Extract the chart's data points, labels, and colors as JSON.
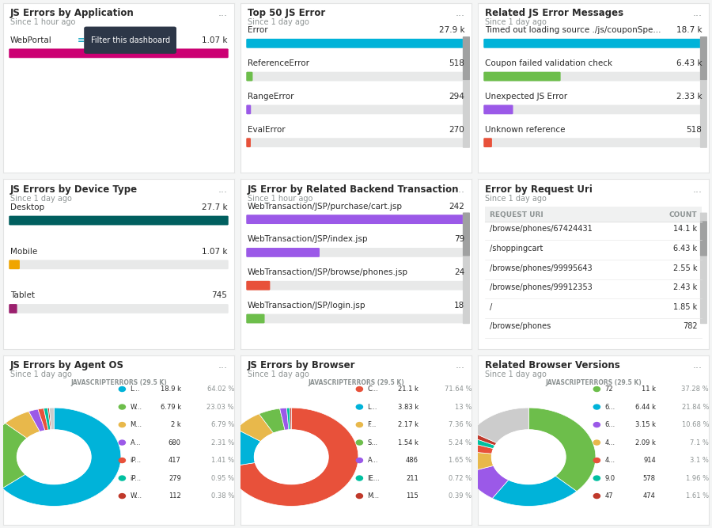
{
  "bg_color": "#f4f5f5",
  "card_color": "#ffffff",
  "border_color": "#e3e4e4",
  "title_color": "#2a2a2a",
  "subtitle_color": "#8e9494",
  "text_color": "#2a2a2a",
  "value_color": "#2a2a2a",
  "bar_bg_color": "#e8e9e9",
  "panel1": {
    "title": "JS Errors by Application",
    "subtitle": "Since 1 hour ago",
    "items": [
      {
        "label": "WebPortal",
        "value": "1.07 k",
        "bar_pct": 1.0,
        "bar_color": "#cc0073"
      }
    ],
    "has_filter_tooltip": true
  },
  "panel2": {
    "title": "Top 50 JS Error",
    "subtitle": "Since 1 day ago",
    "items": [
      {
        "label": "Error",
        "value": "27.9 k",
        "bar_pct": 1.0,
        "bar_color": "#00b3d9"
      },
      {
        "label": "ReferenceError",
        "value": "518",
        "bar_pct": 0.019,
        "bar_color": "#6dbe4b"
      },
      {
        "label": "RangeError",
        "value": "294",
        "bar_pct": 0.011,
        "bar_color": "#9b59e8"
      },
      {
        "label": "EvalError",
        "value": "270",
        "bar_pct": 0.01,
        "bar_color": "#e8513a"
      }
    ]
  },
  "panel3": {
    "title": "Related JS Error Messages",
    "subtitle": "Since 1 day ago",
    "items": [
      {
        "label": "Timed out loading source ./js/couponSpe...",
        "value": "18.7 k",
        "bar_pct": 1.0,
        "bar_color": "#00b3d9"
      },
      {
        "label": "Coupon failed validation check",
        "value": "6.43 k",
        "bar_pct": 0.344,
        "bar_color": "#6dbe4b"
      },
      {
        "label": "Unexpected JS Error",
        "value": "2.33 k",
        "bar_pct": 0.125,
        "bar_color": "#9b59e8"
      },
      {
        "label": "Unknown reference",
        "value": "518",
        "bar_pct": 0.028,
        "bar_color": "#e8513a"
      }
    ]
  },
  "panel4": {
    "title": "JS Errors by Device Type",
    "subtitle": "Since 1 day ago",
    "items": [
      {
        "label": "Desktop",
        "value": "27.7 k",
        "bar_pct": 1.0,
        "bar_color": "#005f5f"
      },
      {
        "label": "Mobile",
        "value": "1.07 k",
        "bar_pct": 0.039,
        "bar_color": "#f0a500"
      },
      {
        "label": "Tablet",
        "value": "745",
        "bar_pct": 0.027,
        "bar_color": "#9b206e"
      }
    ]
  },
  "panel5": {
    "title": "JS Error by Related Backend Transaction",
    "subtitle": "Since 1 hour ago",
    "items": [
      {
        "label": "WebTransaction/JSP/purchase/cart.jsp",
        "value": "242",
        "bar_pct": 1.0,
        "bar_color": "#9b59e8"
      },
      {
        "label": "WebTransaction/JSP/index.jsp",
        "value": "79",
        "bar_pct": 0.327,
        "bar_color": "#9b59e8"
      },
      {
        "label": "WebTransaction/JSP/browse/phones.jsp",
        "value": "24",
        "bar_pct": 0.099,
        "bar_color": "#e8513a"
      },
      {
        "label": "WebTransaction/JSP/login.jsp",
        "value": "18",
        "bar_pct": 0.074,
        "bar_color": "#6dbe4b"
      }
    ]
  },
  "panel6": {
    "title": "Error by Request Uri",
    "subtitle": "Since 1 day ago",
    "table_headers": [
      "REQUEST URI",
      "COUNT"
    ],
    "table_rows": [
      [
        "/browse/phones/67424431",
        "14.1 k"
      ],
      [
        "/shoppingcart",
        "6.43 k"
      ],
      [
        "/browse/phones/99995643",
        "2.55 k"
      ],
      [
        "/browse/phones/99912353",
        "2.43 k"
      ],
      [
        "/",
        "1.85 k"
      ],
      [
        "/browse/phones",
        "782"
      ]
    ]
  },
  "panel7": {
    "title": "JS Errors by Agent OS",
    "subtitle": "Since 1 day ago",
    "chart_title": "JAVASCRIPTERRORS (29.5 K)",
    "legend": [
      {
        "label": "L...",
        "value": "18.9 k",
        "pct": "64.02 %",
        "color": "#00b3d9"
      },
      {
        "label": "W...",
        "value": "6.79 k",
        "pct": "23.03 %",
        "color": "#6dbe4b"
      },
      {
        "label": "M...",
        "value": "2 k",
        "pct": "6.79 %",
        "color": "#e8b84b"
      },
      {
        "label": "A...",
        "value": "680",
        "pct": "2.31 %",
        "color": "#9b59e8"
      },
      {
        "label": "iP...",
        "value": "417",
        "pct": "1.41 %",
        "color": "#e8513a"
      },
      {
        "label": "iP...",
        "value": "279",
        "pct": "0.95 %",
        "color": "#00c0a0"
      },
      {
        "label": "W...",
        "value": "112",
        "pct": "0.38 %",
        "color": "#c0392b"
      }
    ],
    "donut_slices": [
      {
        "pct": 64.02,
        "color": "#00b3d9"
      },
      {
        "pct": 23.03,
        "color": "#6dbe4b"
      },
      {
        "pct": 6.79,
        "color": "#e8b84b"
      },
      {
        "pct": 2.31,
        "color": "#9b59e8"
      },
      {
        "pct": 1.41,
        "color": "#e8513a"
      },
      {
        "pct": 0.95,
        "color": "#00c0a0"
      },
      {
        "pct": 0.38,
        "color": "#c0392b"
      },
      {
        "pct": 1.11,
        "color": "#cccccc"
      }
    ]
  },
  "panel8": {
    "title": "JS Errors by Browser",
    "subtitle": "Since 1 day ago",
    "chart_title": "JAVASCRIPTERRORS (29.5 K)",
    "legend": [
      {
        "label": "C...",
        "value": "21.1 k",
        "pct": "71.64 %",
        "color": "#e8513a"
      },
      {
        "label": "L...",
        "value": "3.83 k",
        "pct": "13 %",
        "color": "#00b3d9"
      },
      {
        "label": "F...",
        "value": "2.17 k",
        "pct": "7.36 %",
        "color": "#e8b84b"
      },
      {
        "label": "S...",
        "value": "1.54 k",
        "pct": "5.24 %",
        "color": "#6dbe4b"
      },
      {
        "label": "A...",
        "value": "486",
        "pct": "1.65 %",
        "color": "#9b59e8"
      },
      {
        "label": "IE...",
        "value": "211",
        "pct": "0.72 %",
        "color": "#00c0a0"
      },
      {
        "label": "M...",
        "value": "115",
        "pct": "0.39 %",
        "color": "#c0392b"
      }
    ],
    "donut_slices": [
      {
        "pct": 71.64,
        "color": "#e8513a"
      },
      {
        "pct": 13.0,
        "color": "#00b3d9"
      },
      {
        "pct": 7.36,
        "color": "#e8b84b"
      },
      {
        "pct": 5.24,
        "color": "#6dbe4b"
      },
      {
        "pct": 1.65,
        "color": "#9b59e8"
      },
      {
        "pct": 0.72,
        "color": "#00c0a0"
      },
      {
        "pct": 0.39,
        "color": "#c0392b"
      }
    ]
  },
  "panel9": {
    "title": "Related Browser Versions",
    "subtitle": "Since 1 day ago",
    "chart_title": "JAVASCRIPTERRORS (29.5 K)",
    "legend": [
      {
        "label": "72",
        "value": "11 k",
        "pct": "37.28 %",
        "color": "#6dbe4b"
      },
      {
        "label": "6...",
        "value": "6.44 k",
        "pct": "21.84 %",
        "color": "#00b3d9"
      },
      {
        "label": "6...",
        "value": "3.15 k",
        "pct": "10.68 %",
        "color": "#9b59e8"
      },
      {
        "label": "4...",
        "value": "2.09 k",
        "pct": "7.1 %",
        "color": "#e8b84b"
      },
      {
        "label": "4...",
        "value": "914",
        "pct": "3.1 %",
        "color": "#e8513a"
      },
      {
        "label": "9.0",
        "value": "578",
        "pct": "1.96 %",
        "color": "#00c0a0"
      },
      {
        "label": "47",
        "value": "474",
        "pct": "1.61 %",
        "color": "#c0392b"
      }
    ],
    "donut_slices": [
      {
        "pct": 37.28,
        "color": "#6dbe4b"
      },
      {
        "pct": 21.84,
        "color": "#00b3d9"
      },
      {
        "pct": 10.68,
        "color": "#9b59e8"
      },
      {
        "pct": 7.1,
        "color": "#e8b84b"
      },
      {
        "pct": 3.1,
        "color": "#e8513a"
      },
      {
        "pct": 1.96,
        "color": "#00c0a0"
      },
      {
        "pct": 1.61,
        "color": "#c0392b"
      },
      {
        "pct": 16.43,
        "color": "#cccccc"
      }
    ]
  }
}
